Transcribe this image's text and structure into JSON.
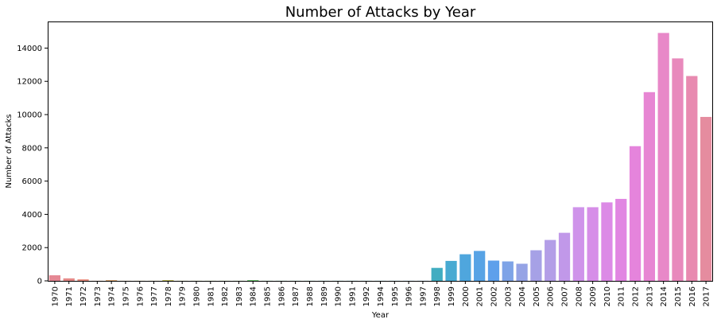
{
  "chart_data": {
    "type": "bar",
    "title": "Number of Attacks by Year",
    "xlabel": "Year",
    "ylabel": "Number of Attacks",
    "ylim": [
      0,
      15600
    ],
    "yticks": [
      "0",
      "2000",
      "4000",
      "6000",
      "8000",
      "10000",
      "12000",
      "14000"
    ],
    "grid": false,
    "categories": [
      "1970",
      "1971",
      "1972",
      "1973",
      "1974",
      "1975",
      "1976",
      "1977",
      "1978",
      "1979",
      "1980",
      "1981",
      "1982",
      "1983",
      "1984",
      "1985",
      "1986",
      "1987",
      "1988",
      "1989",
      "1990",
      "1991",
      "1992",
      "1994",
      "1995",
      "1996",
      "1997",
      "1998",
      "1999",
      "2000",
      "2001",
      "2002",
      "2003",
      "2004",
      "2005",
      "2006",
      "2007",
      "2008",
      "2009",
      "2010",
      "2011",
      "2012",
      "2013",
      "2014",
      "2015",
      "2016",
      "2017"
    ],
    "values": [
      336,
      150,
      90,
      5,
      40,
      5,
      5,
      5,
      40,
      5,
      5,
      5,
      5,
      5,
      40,
      5,
      5,
      5,
      5,
      5,
      5,
      5,
      5,
      5,
      5,
      5,
      5,
      780,
      1200,
      1600,
      1800,
      1220,
      1170,
      1030,
      1840,
      2460,
      2890,
      4430,
      4430,
      4720,
      4930,
      8100,
      11350,
      14910,
      13380,
      12320,
      9860
    ],
    "colors": [
      "#e58894",
      "#e58a88",
      "#e68b7c",
      "#e08e6e",
      "#d2955a",
      "#c99b4e",
      "#c0a044",
      "#b7a43f",
      "#aea83c",
      "#a3ab3b",
      "#97ae3b",
      "#89b13e",
      "#7ab442",
      "#68b74a",
      "#53ba56",
      "#45bb66",
      "#3fbb78",
      "#3dba88",
      "#3eba96",
      "#3fb9a3",
      "#40b9ae",
      "#40b8b8",
      "#41b6c1",
      "#43b3c9",
      "#45afd1",
      "#47abd9",
      "#49a8e1",
      "#41adc1",
      "#48aad2",
      "#4fa6dd",
      "#57a3e5",
      "#5ea0eb",
      "#7ea3e7",
      "#95a3e5",
      "#a6a1e6",
      "#b39ee7",
      "#c198e9",
      "#cf93ea",
      "#d68ee8",
      "#dc8ae6",
      "#e186e2",
      "#e584dc",
      "#e786d3",
      "#e888c8",
      "#e889bc",
      "#e88ab0",
      "#e58c9f"
    ]
  }
}
